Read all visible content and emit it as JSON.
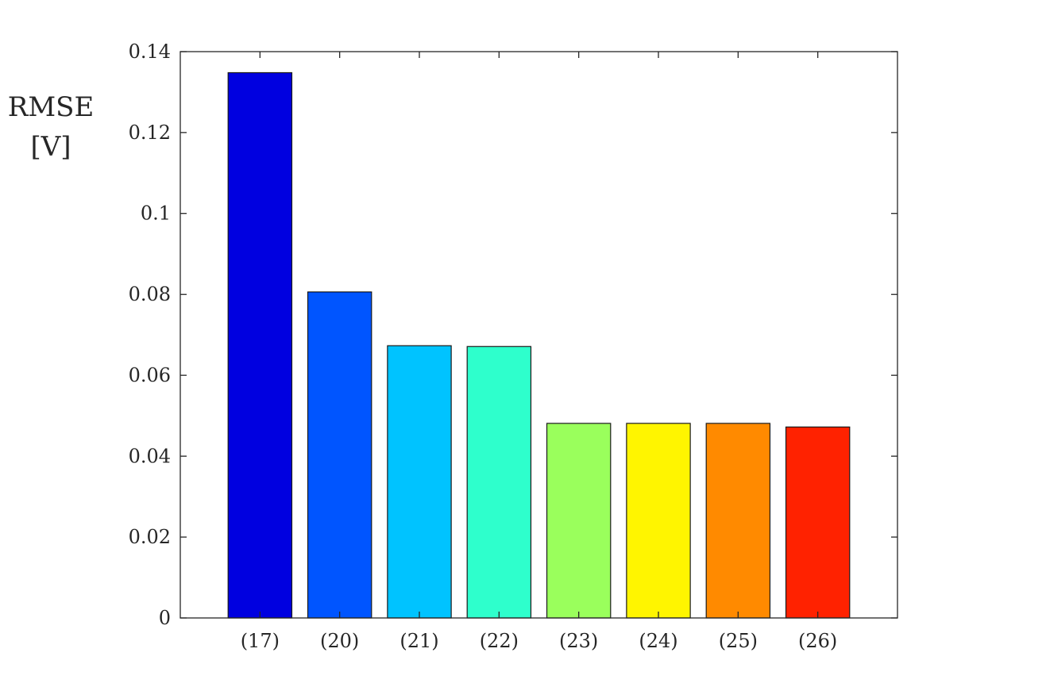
{
  "chart_data": {
    "type": "bar",
    "categories": [
      "(17)",
      "(20)",
      "(21)",
      "(22)",
      "(23)",
      "(24)",
      "(25)",
      "(26)"
    ],
    "values": [
      0.1348,
      0.0806,
      0.0673,
      0.0671,
      0.0481,
      0.0481,
      0.0481,
      0.0472
    ],
    "colors": [
      "#0000e0",
      "#0055ff",
      "#00c3ff",
      "#2effcc",
      "#9aff5c",
      "#fff500",
      "#ff8a00",
      "#ff2200"
    ],
    "title": "",
    "xlabel": "",
    "ylabel_lines": [
      "RMSE",
      "[V]"
    ],
    "ylim": [
      0,
      0.14
    ],
    "yticks": [
      "0",
      "0.02",
      "0.04",
      "0.06",
      "0.08",
      "0.1",
      "0.12",
      "0.14"
    ],
    "grid": false
  }
}
